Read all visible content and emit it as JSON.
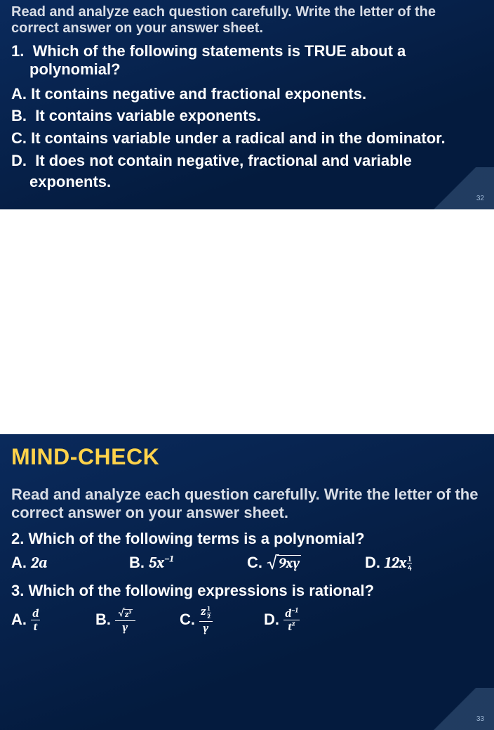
{
  "slide1": {
    "intro": "Read and analyze each question carefully. Write the letter of the correct answer on your answer sheet.",
    "q_num": "1.",
    "q_text": "Which of the following statements is TRUE about a polynomial?",
    "opts": {
      "A": "It contains negative and fractional exponents.",
      "B": "It contains variable exponents.",
      "C": "It contains variable under a radical and in the dominator.",
      "D": "It does not contain negative, fractional and variable exponents."
    },
    "page": "32"
  },
  "slide2": {
    "title": "MIND-CHECK",
    "intro": "Read and analyze each question carefully. Write the letter of the correct answer on your answer sheet.",
    "q2_num": "2.",
    "q2_text": "Which of the following terms is a polynomial?",
    "q2_opts": {
      "A": {
        "label": "A.",
        "expr_plain": "2a"
      },
      "B": {
        "label": "B.",
        "base": "5x",
        "exp": "−1"
      },
      "C": {
        "label": "C.",
        "rad_arg": "9xy"
      },
      "D": {
        "label": "D.",
        "base": "12x",
        "exp_frac": {
          "n": "1",
          "d": "4"
        }
      }
    },
    "q3_num": "3.",
    "q3_text": "Which of the following expressions is rational?",
    "q3_opts": {
      "A": {
        "label": "A.",
        "frac": {
          "n": "d",
          "d": "t"
        }
      },
      "B": {
        "label": "B.",
        "frac_num_sqrt": {
          "arg": "z",
          "exp": "3"
        },
        "den": "y"
      },
      "C": {
        "label": "C.",
        "num_base": "z",
        "num_exp_frac": {
          "n": "1",
          "d": "2"
        },
        "den": "y"
      },
      "D": {
        "label": "D.",
        "num_base": "d",
        "num_exp": "−1",
        "den_base": "t",
        "den_exp": "z"
      }
    },
    "page": "33"
  },
  "colors": {
    "bg_dark": "#041b3e",
    "bg_light": "#0a2a5c",
    "title": "#ffd24a",
    "text": "#ffffff",
    "muted": "#d8dde6"
  }
}
